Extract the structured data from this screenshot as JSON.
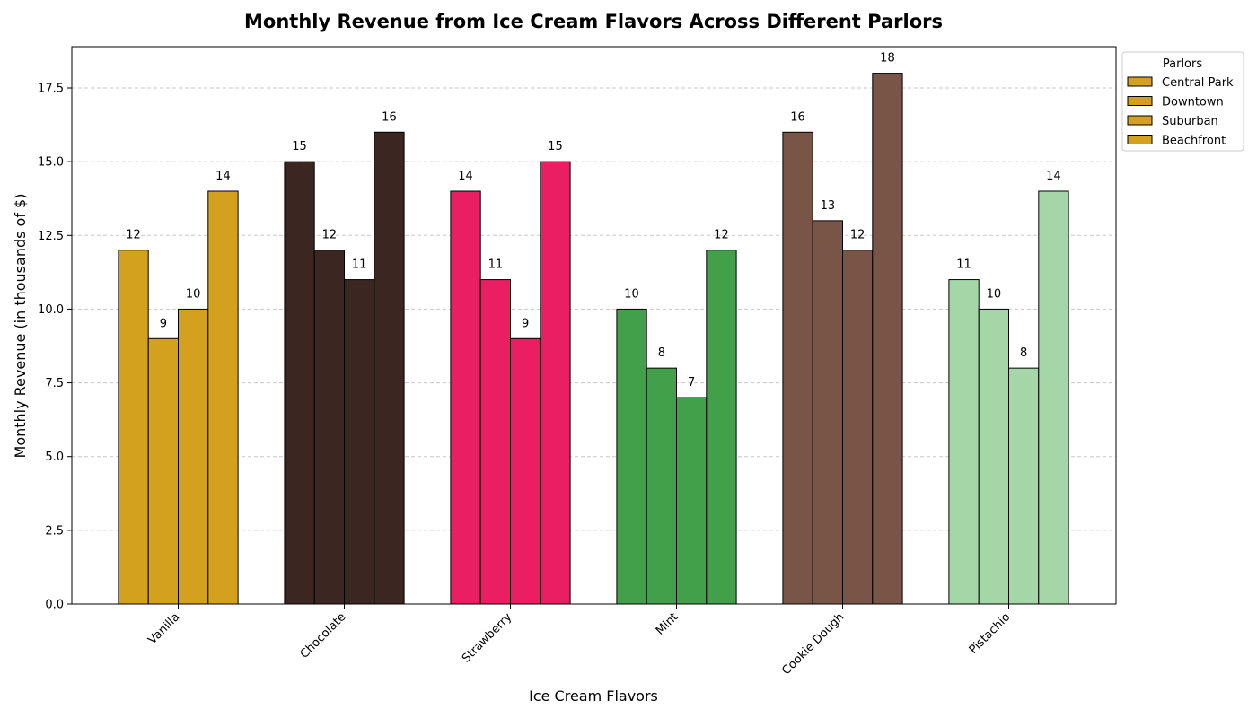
{
  "chart_data": {
    "type": "bar",
    "title": "Monthly Revenue from Ice Cream Flavors Across Different Parlors",
    "xlabel": "Ice Cream Flavors",
    "ylabel": "Monthly Revenue (in thousands of $)",
    "ylim": [
      0,
      18.9
    ],
    "yticks": [
      "0.0",
      "2.5",
      "5.0",
      "7.5",
      "10.0",
      "12.5",
      "15.0",
      "17.5"
    ],
    "ytick_values": [
      0,
      2.5,
      5,
      7.5,
      10,
      12.5,
      15,
      17.5
    ],
    "grid": true,
    "categories": [
      "Vanilla",
      "Chocolate",
      "Strawberry",
      "Mint",
      "Cookie Dough",
      "Pistachio"
    ],
    "category_colors": [
      "#D4A11E",
      "#3C2622",
      "#E91E63",
      "#43A04A",
      "#795548",
      "#A5D6A7"
    ],
    "series": [
      {
        "name": "Central Park",
        "values": [
          12,
          15,
          14,
          10,
          16,
          11
        ]
      },
      {
        "name": "Downtown",
        "values": [
          9,
          12,
          11,
          8,
          13,
          10
        ]
      },
      {
        "name": "Suburban",
        "values": [
          10,
          11,
          9,
          7,
          12,
          8
        ]
      },
      {
        "name": "Beachfront",
        "values": [
          14,
          16,
          15,
          12,
          18,
          14
        ]
      }
    ],
    "legend": {
      "title": "Parlors",
      "placement": "outside-top-right",
      "swatch_color": "#D4A11E"
    }
  }
}
